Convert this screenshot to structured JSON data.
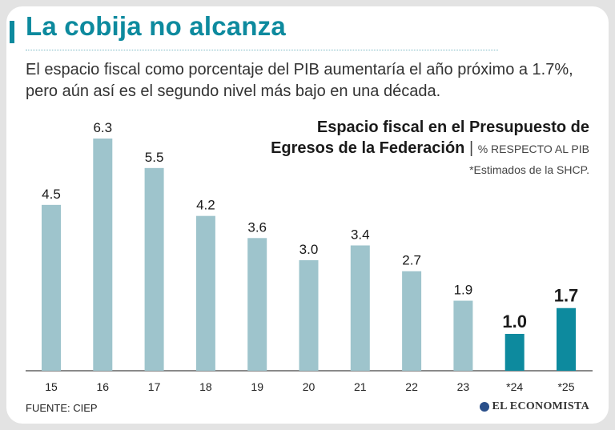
{
  "header": {
    "title": "La cobija no alcanza",
    "subtitle": "El espacio fiscal como porcentaje del PIB aumentaría el año próximo a 1.7%, pero aún así es el segundo nivel más bajo en una década."
  },
  "chart_data": {
    "type": "bar",
    "title_line1": "Espacio fiscal en el Presupuesto de",
    "title_line2": "Egresos de la Federación",
    "unit_separator": "|",
    "unit": "% RESPECTO AL PIB",
    "note": "*Estimados de la SHCP.",
    "categories": [
      "15",
      "16",
      "17",
      "18",
      "19",
      "20",
      "21",
      "22",
      "23",
      "*24",
      "*25"
    ],
    "values": [
      4.5,
      6.3,
      5.5,
      4.2,
      3.6,
      3.0,
      3.4,
      2.7,
      1.9,
      1.0,
      1.7
    ],
    "labels": [
      "4.5",
      "6.3",
      "5.5",
      "4.2",
      "3.6",
      "3.0",
      "3.4",
      "2.7",
      "1.9",
      "1.0",
      "1.7"
    ],
    "highlight": [
      false,
      false,
      false,
      false,
      false,
      false,
      false,
      false,
      false,
      true,
      true
    ],
    "ylim": [
      0,
      6.3
    ],
    "grid": false,
    "colors": {
      "bar": "#9ec4cc",
      "highlight": "#0d8a9e",
      "axis": "#444444"
    }
  },
  "footer": {
    "source": "FUENTE: CIEP",
    "brand": "EL ECONOMISTA"
  }
}
